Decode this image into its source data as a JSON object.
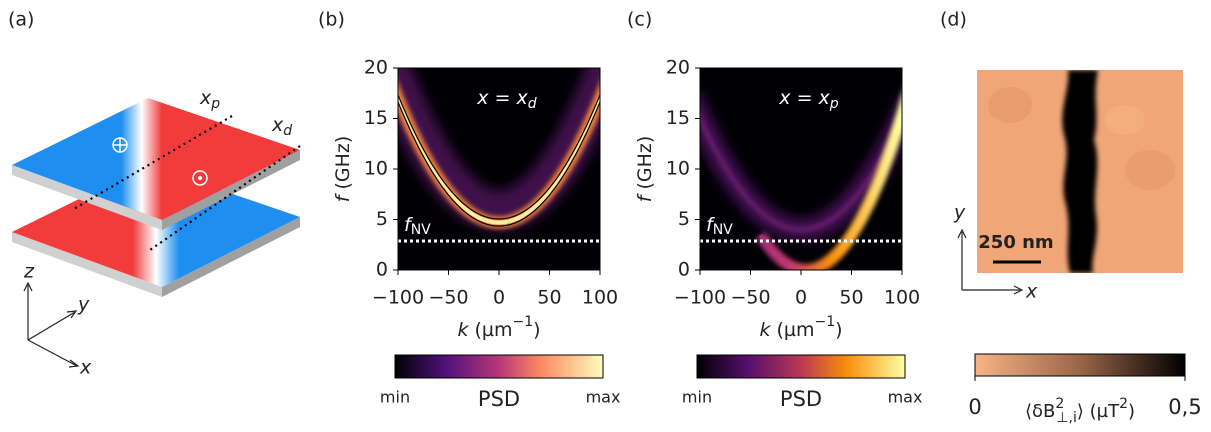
{
  "panels": {
    "a": {
      "label": "(a)",
      "x_p": {
        "main": "x",
        "sub": "p"
      },
      "x_d": {
        "main": "x",
        "sub": "d"
      },
      "axes": {
        "z": "z",
        "y": "y",
        "x": "x"
      }
    },
    "b": {
      "label": "(b)",
      "annotation": {
        "main": "x = x",
        "sub": "d"
      },
      "f_nv": {
        "main": "f",
        "sub": "NV"
      },
      "f_nv_line": 2.87,
      "y_label": [
        "f",
        "(GHz)"
      ],
      "x_label": [
        "k",
        "(µm",
        "−1",
        ")"
      ],
      "xlim": [
        -100,
        100
      ],
      "ylim": [
        0,
        20
      ],
      "xticks": [
        {
          "value": -100,
          "label": "−100"
        },
        {
          "value": -50,
          "label": "−50"
        },
        0,
        50,
        100
      ],
      "yticks": [
        0,
        5,
        10,
        15,
        20
      ],
      "colorbar": {
        "min": "min",
        "label": "PSD",
        "max": "max"
      }
    },
    "c": {
      "label": "(c)",
      "annotation": {
        "main": "x = x",
        "sub": "p"
      },
      "f_nv": {
        "main": "f",
        "sub": "NV"
      },
      "f_nv_line": 2.87,
      "y_label": [
        "f",
        "(GHz)"
      ],
      "x_label": [
        "k",
        "(µm",
        "−1",
        ")"
      ],
      "xlim": [
        -100,
        100
      ],
      "ylim": [
        0,
        20
      ],
      "xticks": [
        {
          "value": -100,
          "label": "−100"
        },
        {
          "value": -50,
          "label": "−50"
        },
        0,
        50,
        100
      ],
      "yticks": [
        0,
        5,
        10,
        15,
        20
      ],
      "colorbar": {
        "min": "min",
        "label": "PSD",
        "max": "max"
      }
    },
    "d": {
      "label": "(d)",
      "scale_bar": "250 nm",
      "y_axis": "y",
      "x_axis": "x",
      "colorbar": {
        "lim": [
          0,
          0.5
        ],
        "ticks": [
          0,
          {
            "value": 0.5,
            "label": "0,5"
          }
        ],
        "label": [
          "⟨δB",
          "2",
          "⊥,i",
          "⟩ (µT",
          "2",
          ")"
        ]
      }
    }
  }
}
